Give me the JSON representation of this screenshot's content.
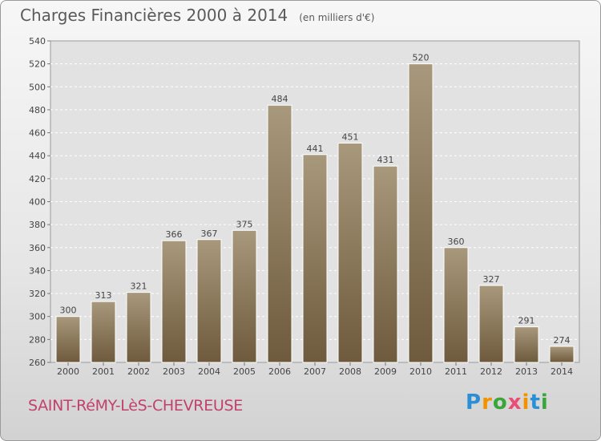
{
  "header": {
    "title": "Charges Financières 2000 à 2014",
    "subtitle": "(en milliers d'€)"
  },
  "footer": {
    "city": "SAINT-RéMY-LèS-CHEVREUSE",
    "logo": {
      "letters": [
        "P",
        "r",
        "o",
        "x",
        "i",
        "t",
        "i"
      ],
      "colors": [
        "#2b8fd6",
        "#f39200",
        "#3aa639",
        "#e94e77",
        "#f39200",
        "#2b8fd6",
        "#3aa639"
      ]
    }
  },
  "chart_data": {
    "type": "bar",
    "categories": [
      "2000",
      "2001",
      "2002",
      "2003",
      "2004",
      "2005",
      "2006",
      "2007",
      "2008",
      "2009",
      "2010",
      "2011",
      "2012",
      "2013",
      "2014"
    ],
    "values": [
      300,
      313,
      321,
      366,
      367,
      375,
      484,
      441,
      451,
      431,
      520,
      360,
      327,
      291,
      274
    ],
    "ylim": [
      260,
      540
    ],
    "yticks": [
      260,
      280,
      300,
      320,
      340,
      360,
      380,
      400,
      420,
      440,
      460,
      480,
      500,
      520,
      540
    ],
    "grid": true,
    "bar_color_top": "#a8987c",
    "bar_color_bottom": "#6e5a3c"
  }
}
